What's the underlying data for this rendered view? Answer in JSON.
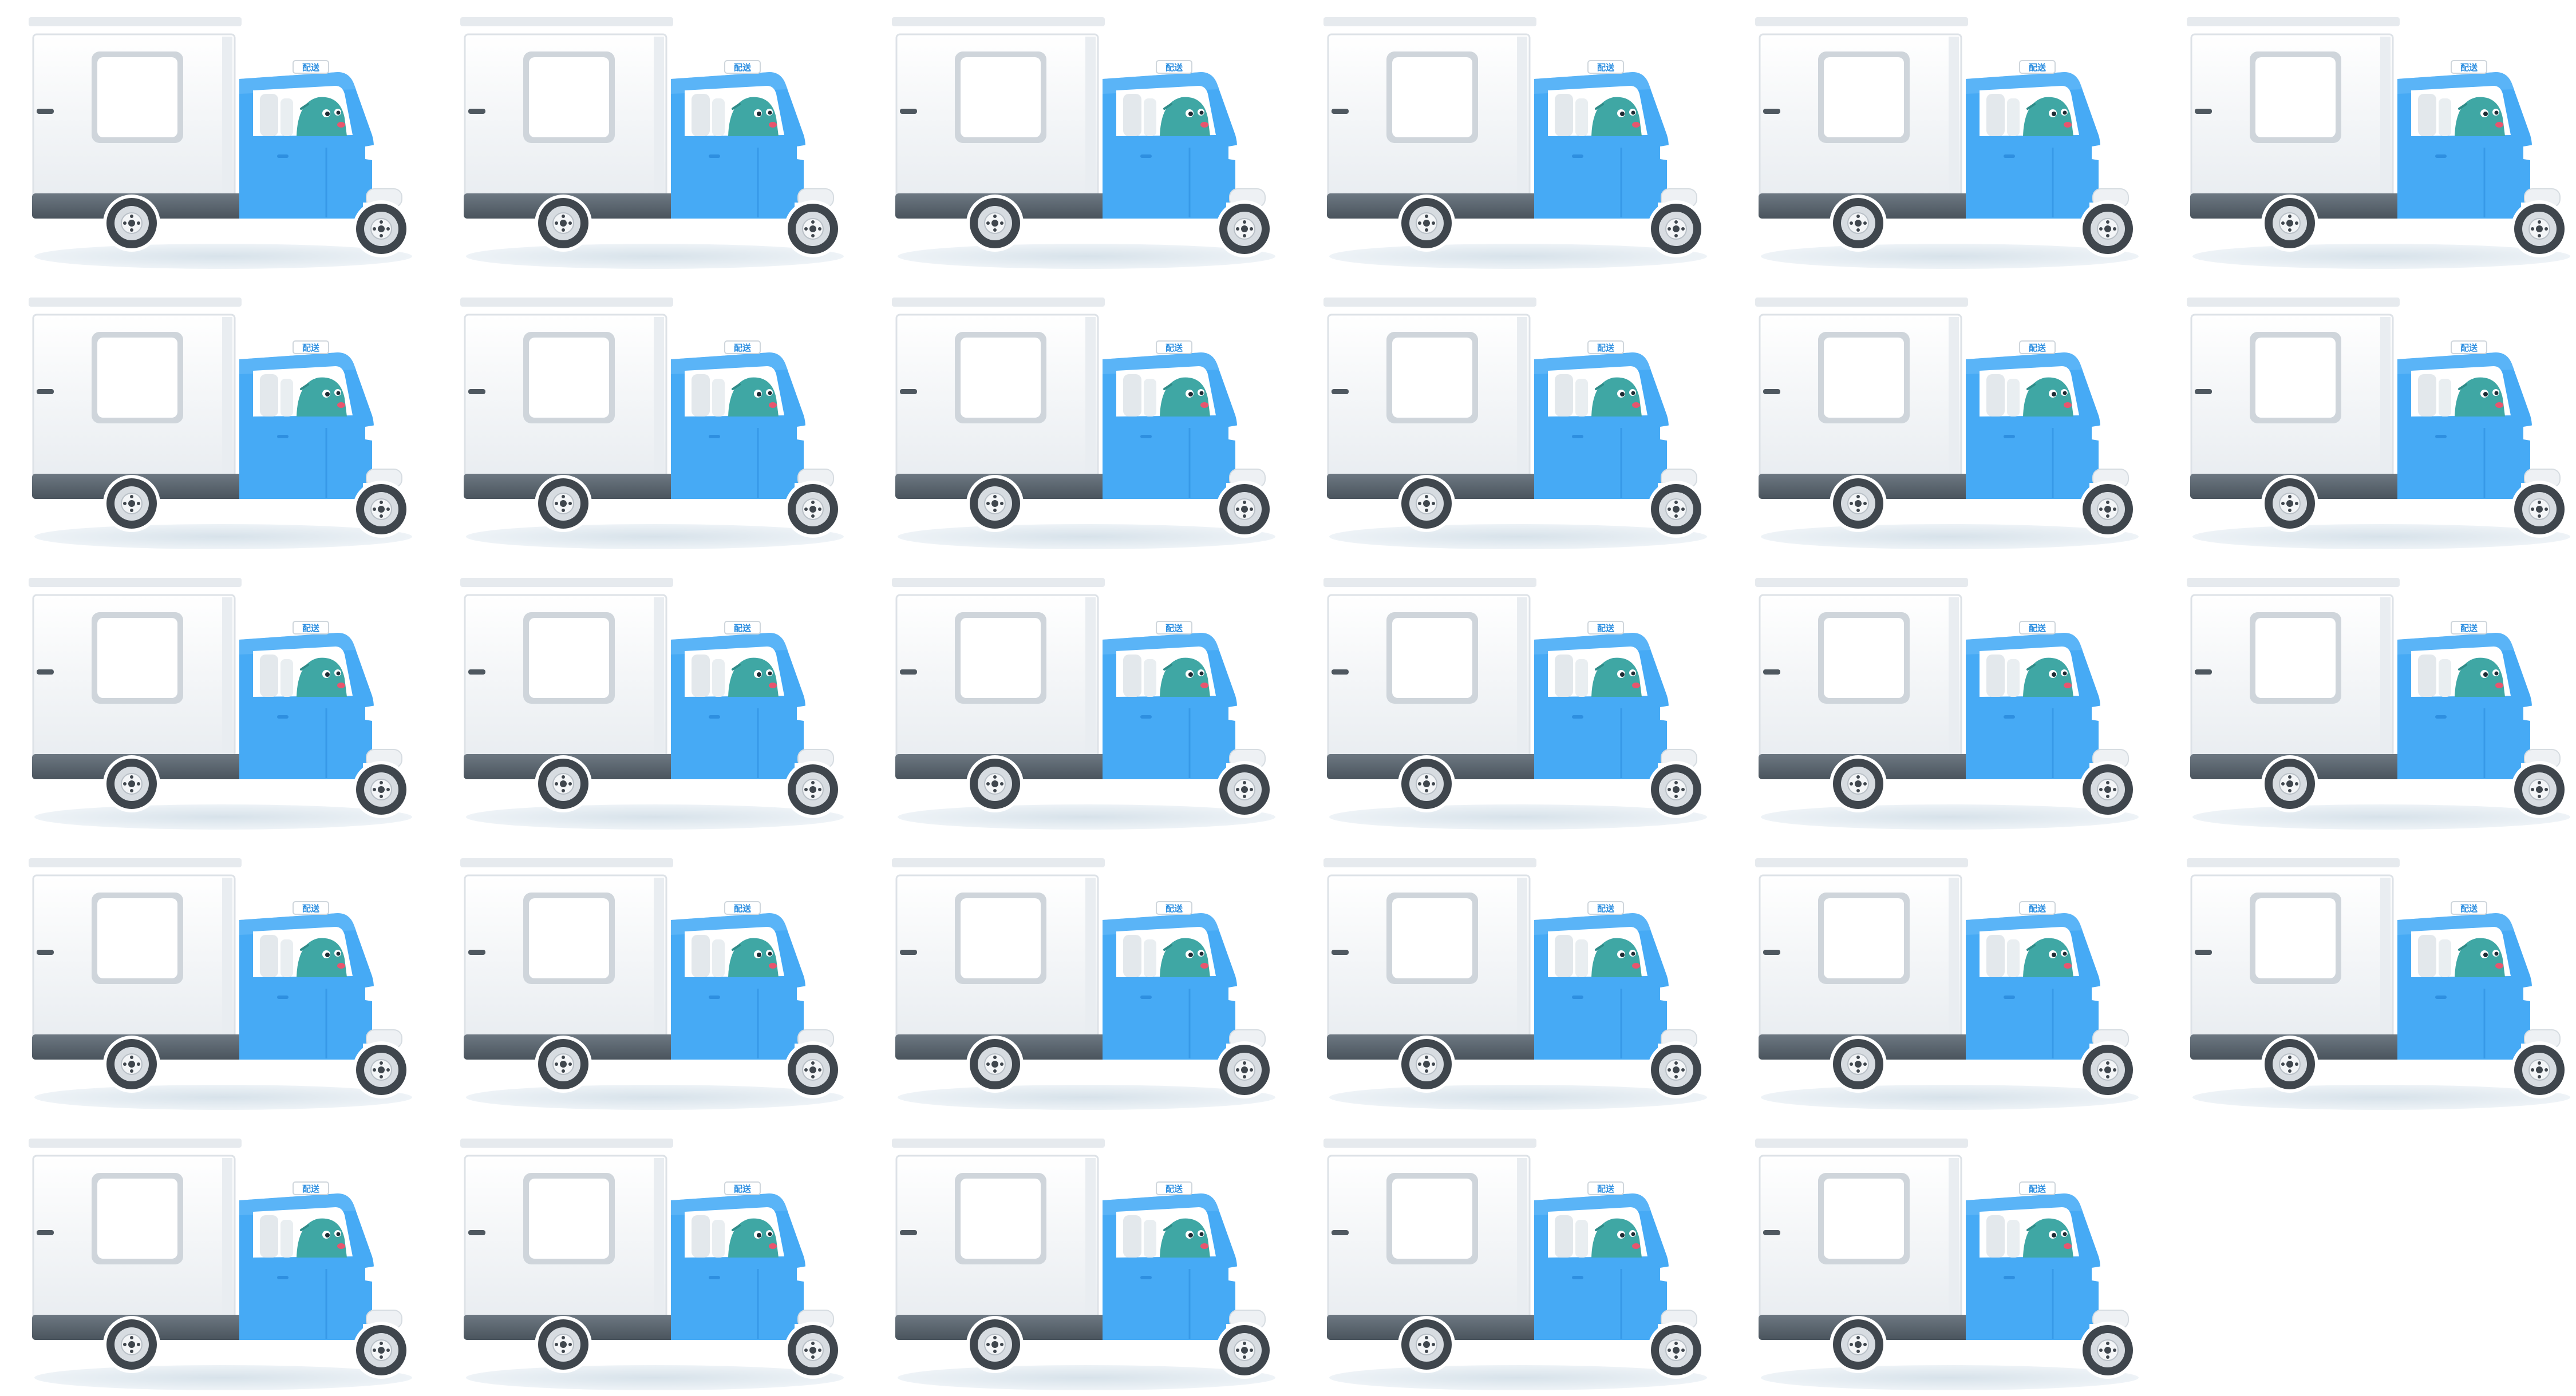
{
  "sprite_sheet": {
    "grid": {
      "columns": 6,
      "rows": 5,
      "frame_count": 29
    },
    "vehicle": "delivery-tuk-tuk",
    "colors": {
      "background": "#ffffff",
      "cab_blue": "#46aaf5",
      "cab_blue_dark": "#2e8fe0",
      "box_white": "#f4f6f8",
      "box_edge": "#dde2e7",
      "chassis_gray": "#5f6a74",
      "tire": "#3f464d",
      "hub": "#d7dce1",
      "shadow": "#dce6ee",
      "driver": "#3fa7a4",
      "driver_cheek": "#e8556e"
    },
    "roof_sign_text": "配送"
  }
}
